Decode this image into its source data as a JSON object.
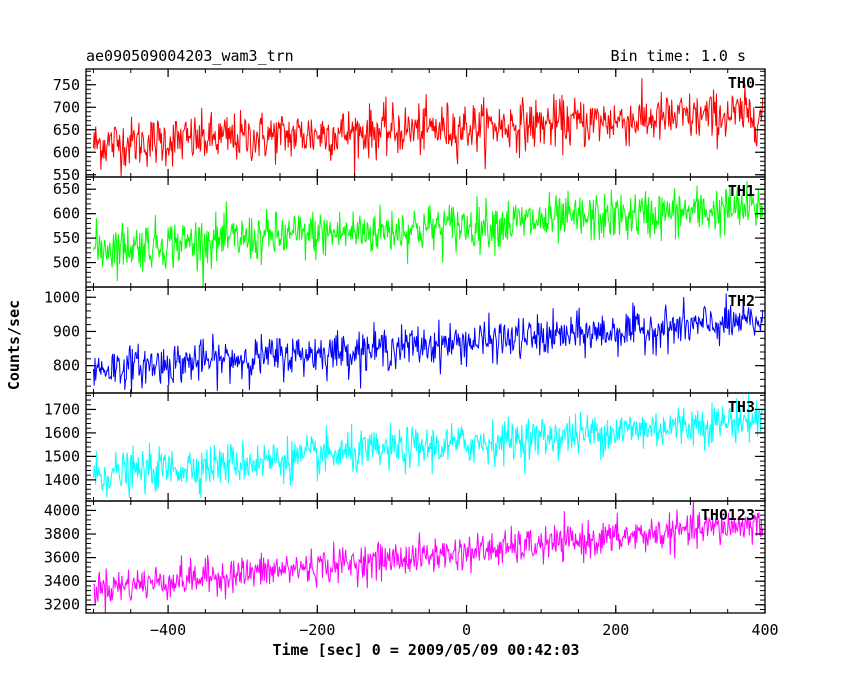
{
  "chart_data": {
    "type": "line",
    "title_left": "ae090509004203_wam3_trn",
    "title_right": "Bin time: 1.0 s",
    "xlabel": "Time [sec] 0 = 2009/05/09 00:42:03",
    "ylabel": "Counts/sec",
    "xlim": [
      -510,
      400
    ],
    "x_ticks": [
      -400,
      -200,
      0,
      200,
      400
    ],
    "x_range": [
      -500,
      397
    ],
    "bin_time_s": 1.0,
    "panels": [
      {
        "name": "TH0",
        "color": "#ff0000",
        "ylim": [
          545,
          785
        ],
        "y_ticks": [
          550,
          600,
          650,
          700,
          750
        ],
        "trend_start": 618,
        "trend_end": 685,
        "noise": 28
      },
      {
        "name": "TH1",
        "color": "#00ff00",
        "ylim": [
          450,
          675
        ],
        "y_ticks": [
          500,
          550,
          600,
          650
        ],
        "trend_start": 530,
        "trend_end": 612,
        "noise": 25
      },
      {
        "name": "TH2",
        "color": "#0000ff",
        "ylim": [
          720,
          1030
        ],
        "y_ticks": [
          800,
          900,
          1000
        ],
        "trend_start": 790,
        "trend_end": 930,
        "noise": 30
      },
      {
        "name": "TH3",
        "color": "#00ffff",
        "ylim": [
          1310,
          1770
        ],
        "y_ticks": [
          1400,
          1500,
          1600,
          1700
        ],
        "trend_start": 1420,
        "trend_end": 1660,
        "noise": 45
      },
      {
        "name": "TH0123",
        "color": "#ff00ff",
        "ylim": [
          3130,
          4080
        ],
        "y_ticks": [
          3200,
          3400,
          3600,
          3800,
          4000
        ],
        "trend_start": 3340,
        "trend_end": 3890,
        "noise": 75
      }
    ]
  }
}
